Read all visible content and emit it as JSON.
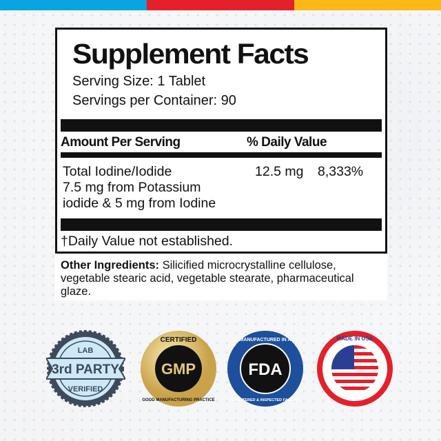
{
  "top_bar_colors": [
    "#0aa4e2",
    "#e4202a",
    "#fbb817"
  ],
  "facts": {
    "title": "Supplement Facts",
    "serving_size": "Serving Size: 1 Tablet",
    "servings_per_container": "Servings per Container: 90",
    "header_amount": "Amount Per Serving",
    "header_dv": "% Daily Value",
    "rows": [
      {
        "name_lines": [
          "Total Iodine/Iodide",
          "7.5 mg from Potassium",
          "iodide & 5 mg from Iodine"
        ],
        "amount": "12.5 mg",
        "dv": "8,333%"
      }
    ],
    "footnote": "†Daily Value not established."
  },
  "other_ingredients": {
    "label": "Other Ingredients:",
    "text": " Silicified microcrystalline cellulose, vegetable stearic acid, vegetable stearate, pharmaceutical glaze."
  },
  "badges": [
    {
      "icon": "lab-verified-badge",
      "lines": [
        "LAB",
        "3rd PARTY",
        "VERIFIED"
      ]
    },
    {
      "icon": "gmp-certified-badge",
      "lines": [
        "CERTIFIED",
        "GMP",
        "GOOD MANUFACTURING PRACTICE"
      ]
    },
    {
      "icon": "fda-registered-badge",
      "lines": [
        "MANUFACTURED IN A",
        "FDA",
        "REGISTERED & INSPECTED FACILITY"
      ]
    },
    {
      "icon": "made-in-usa-badge",
      "lines": [
        "MADE IN USA"
      ]
    }
  ]
}
